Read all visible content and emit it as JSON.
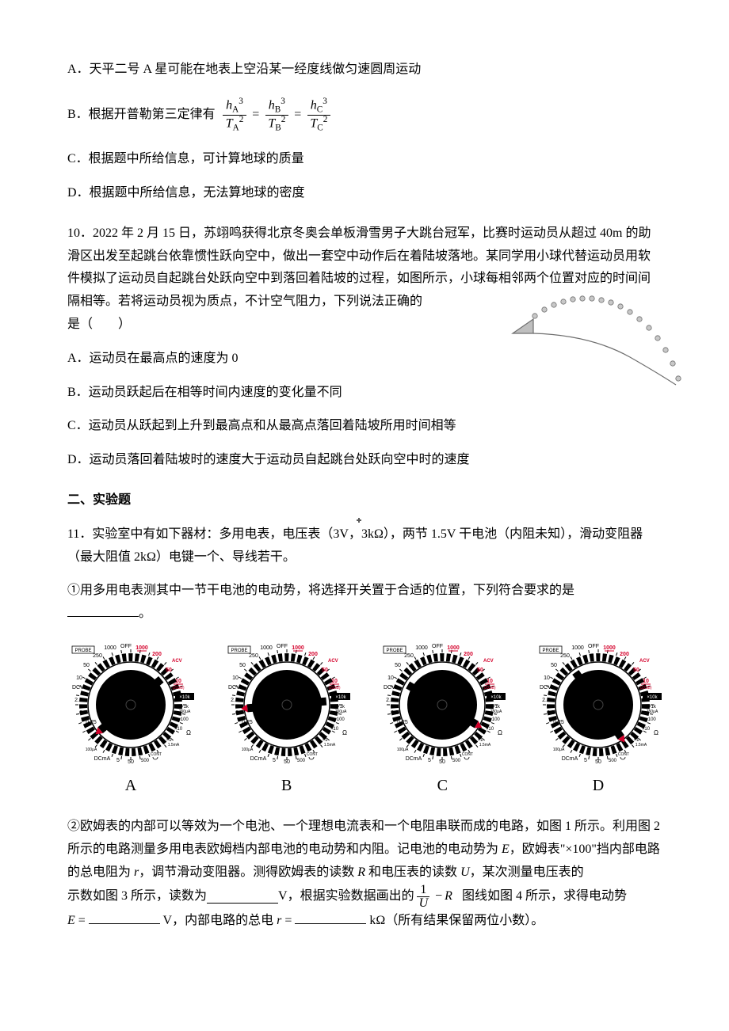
{
  "q9": {
    "optA": "A．天平二号 A 星可能在地表上空沿某一经度线做匀速圆周运动",
    "optB_prefix": "B．根据开普勒第三定律有",
    "optC": "C．根据题中所给信息，可计算地球的质量",
    "optD": "D．根据题中所给信息，无法算地球的密度"
  },
  "q10": {
    "stem1": "10．2022 年 2 月 15 日，苏翊鸣获得北京冬奥会单板滑雪男子大跳台冠军，比赛时运动员从超过 40m 的助滑区出发至起跳台依靠惯性跃向空中，做出一套空中动作后在着陆坡落地。某同学用小球代替运动员用软件模拟了运动员自起跳台处跃向空中到落回着陆坡的过程，如图所示，小球每相邻两个位置对应的时间间隔相等。若将运动员视为质点，不计空气阻力，下列说法正确的",
    "stem2": "是（　　）",
    "optA": "A．运动员在最高点的速度为 0",
    "optB": "B．运动员跃起后在相等时间内速度的变化量不同",
    "optC": "C．运动员从跃起到上升到最高点和从最高点落回着陆坡所用时间相等",
    "optD": "D．运动员落回着陆坡时的速度大于运动员自起跳台处跃向空中时的速度"
  },
  "section2": "二、实验题",
  "q11": {
    "stem": "11．实验室中有如下器材：多用电表，电压表（3V，3kΩ），两节 1.5V 干电池（内阻未知），滑动变阻器（最大阻值 2kΩ）电键一个、导线若干。",
    "part1": "①用多用电表测其中一节干电池的电动势，将选择开关置于合适的位置，下列符合要求的是",
    "blank_suffix": "。",
    "dial_labels": [
      "A",
      "B",
      "C",
      "D"
    ],
    "part2_a": "②欧姆表的内部可以等效为一个电池、一个理想电流表和一个电阻串联而成的电路，如图 1 所示。利用图 2 所示的电路测量多用电表欧姆档内部电池的电动势和内阻。记电池的电动势为 ",
    "E": "E",
    "part2_b": "，欧姆表",
    "x100": "\"×100\"",
    "part2_c": "挡内部电路的总电阻为 ",
    "r": "r",
    "part2_d": "，调节滑动变阻器。测得欧姆表的读数 ",
    "R": "R",
    "part2_e": " 和电压表的读数 ",
    "U": "U",
    "part2_f": "，某次测量电压表的",
    "line3_a": "示数如图 3 所示，读数为",
    "line3_b": "V，根据实验数据画出的",
    "frac_num": "1",
    "frac_den": "U",
    "minus": "−",
    "line3_c": "图线如图 4 所示，求得电动势",
    "line4_a": "V，内部电路的总电",
    "line4_b": "kΩ（所有结果保留两位小数）。",
    "equals": "="
  },
  "trajectory": {
    "dots_count": 17,
    "dot_color": "#b7b7b7",
    "dot_stroke": "#6e6e6e",
    "ramp_fill": "#bfbfbf",
    "ramp_stroke": "#6e6e6e",
    "slope_color": "#6e6e6e"
  },
  "dial_style": {
    "outer_stroke": "#000000",
    "tick_color": "#000000",
    "red": "#d4002a",
    "label_color": "#000000",
    "pointer_angles": [
      140,
      175,
      30,
      55
    ],
    "scale_top_black": [
      "1000",
      "OFF"
    ],
    "scale_top_red": [
      "1000",
      "200",
      "50",
      "10"
    ],
    "scale_left": [
      "250",
      "50",
      "10",
      "2.5",
      "0.5",
      "0.25"
    ],
    "scale_right": [
      "×10k",
      "×1k",
      "×100",
      "×10",
      "×1"
    ],
    "dcv": "DCV",
    "acv": "ACV",
    "ohm": "Ω",
    "dcma": "DCmA",
    "bottom": [
      "100μA",
      "5",
      "50",
      "500",
      "CONT",
      "15mA"
    ],
    "probe": "PROBE",
    "db": "(22dB)",
    "ma150": "150μA",
    "ma15": "1.5mA"
  }
}
